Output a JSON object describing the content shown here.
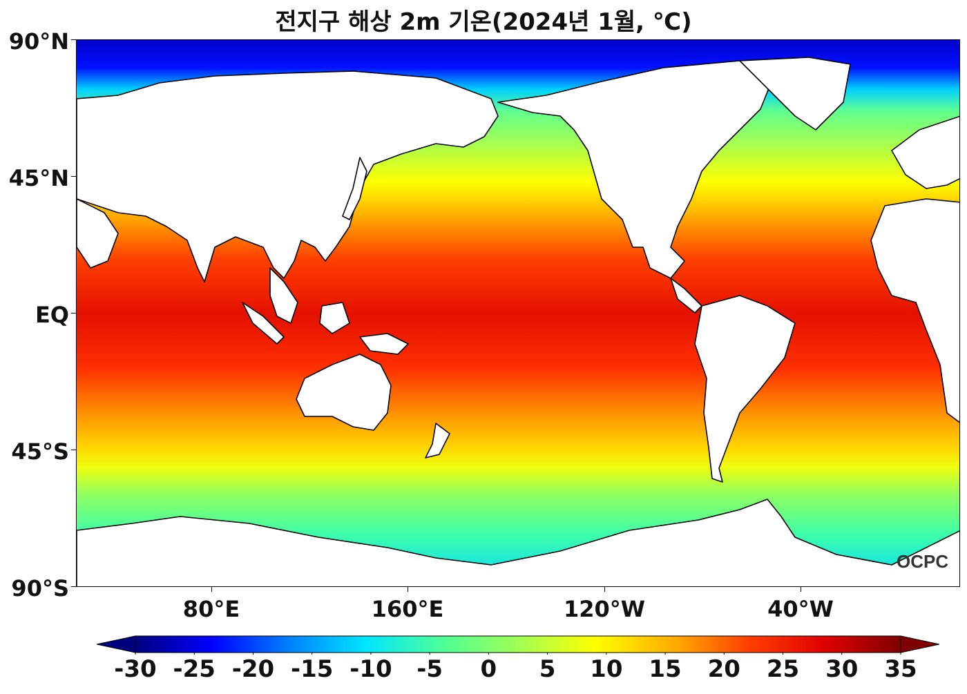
{
  "title": "전지구 해상 2m 기온(2024년 1월, ℃)",
  "logo_text": "OCPC",
  "y_axis": [
    "90°N",
    "45°N",
    "EQ",
    "45°S",
    "90°S"
  ],
  "x_axis": [
    "80°E",
    "160°E",
    "120°W",
    "40°W"
  ],
  "colorbar": {
    "min": -30,
    "max": 35,
    "ticks": [
      "-30",
      "-25",
      "-20",
      "-15",
      "-10",
      "-5",
      "0",
      "5",
      "10",
      "15",
      "20",
      "25",
      "30",
      "35"
    ],
    "colors": [
      "#00007f",
      "#0000ff",
      "#007fff",
      "#00e5ff",
      "#4cff99",
      "#a0ff55",
      "#ffff00",
      "#ffb000",
      "#ff4000",
      "#e00000",
      "#7f0000"
    ]
  }
}
